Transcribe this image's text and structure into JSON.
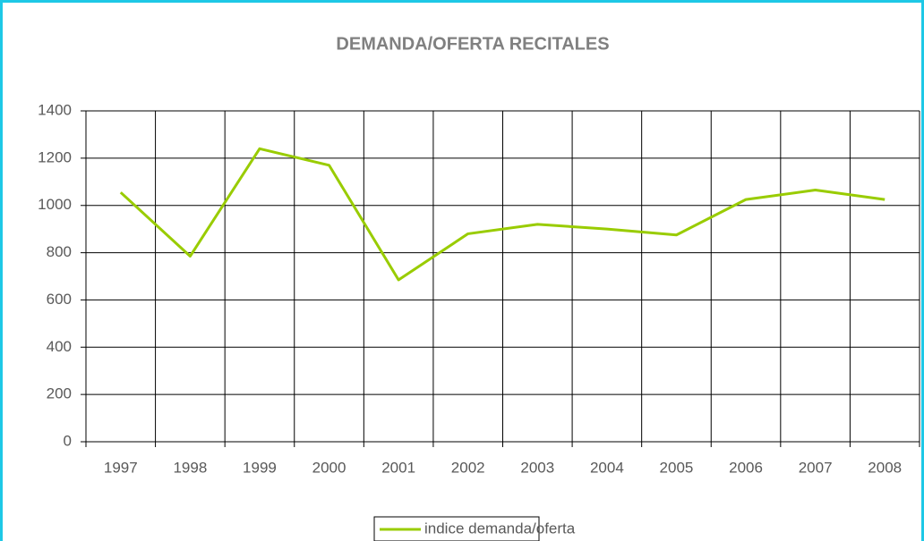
{
  "chart_data": {
    "type": "line",
    "title": "DEMANDA/OFERTA RECITALES",
    "categories": [
      "1997",
      "1998",
      "1999",
      "2000",
      "2001",
      "2002",
      "2003",
      "2004",
      "2005",
      "2006",
      "2007",
      "2008"
    ],
    "series": [
      {
        "name": "indice demanda/oferta",
        "color": "#99cc00",
        "values": [
          1055,
          785,
          1240,
          1170,
          685,
          880,
          920,
          900,
          875,
          1025,
          1065,
          1025
        ]
      }
    ],
    "ylim": [
      0,
      1400
    ],
    "yticks": [
      0,
      200,
      400,
      600,
      800,
      1000,
      1200,
      1400
    ],
    "grid": true,
    "legend": "bottom"
  }
}
